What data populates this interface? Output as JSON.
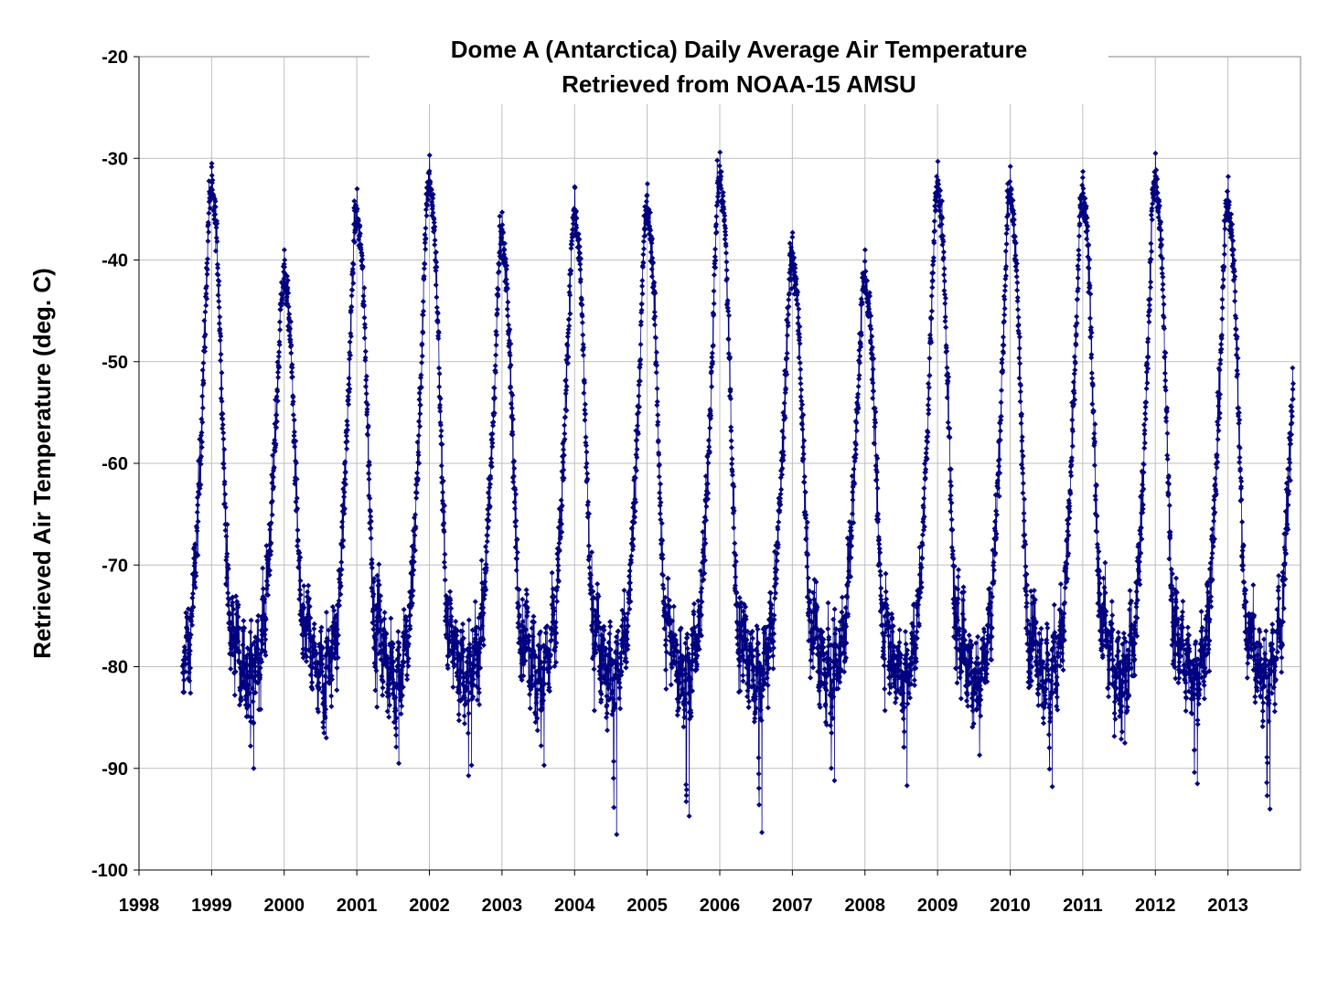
{
  "chart_data": {
    "type": "line",
    "title": "Dome A (Antarctica) Daily Average Air Temperature",
    "subtitle": "Retrieved from NOAA-15 AMSU",
    "xlabel": "",
    "ylabel": "Retrieved Air Temperature (deg. C)",
    "xlim": [
      1998,
      2014
    ],
    "ylim": [
      -100,
      -20
    ],
    "x_ticks": [
      "1998",
      "1999",
      "2000",
      "2001",
      "2002",
      "2003",
      "2004",
      "2005",
      "2006",
      "2007",
      "2008",
      "2009",
      "2010",
      "2011",
      "2012",
      "2013"
    ],
    "y_ticks": [
      "-20",
      "-30",
      "-40",
      "-50",
      "-60",
      "-70",
      "-80",
      "-90",
      "-100"
    ],
    "grid": true,
    "legend": "none",
    "marker": "diamond",
    "series_color": "#000080",
    "series": [
      {
        "name": "",
        "start_year": 1998.6,
        "end_year": 2013.9,
        "summer_peaks": [
          {
            "year": 1999,
            "peak": -30.5
          },
          {
            "year": 2000,
            "peak": -39.0
          },
          {
            "year": 2001,
            "peak": -33.0
          },
          {
            "year": 2002,
            "peak": -29.7
          },
          {
            "year": 2003,
            "peak": -35.3
          },
          {
            "year": 2004,
            "peak": -32.8
          },
          {
            "year": 2005,
            "peak": -32.5
          },
          {
            "year": 2006,
            "peak": -29.4
          },
          {
            "year": 2007,
            "peak": -37.3
          },
          {
            "year": 2008,
            "peak": -39.0
          },
          {
            "year": 2009,
            "peak": -30.3
          },
          {
            "year": 2010,
            "peak": -30.8
          },
          {
            "year": 2011,
            "peak": -31.3
          },
          {
            "year": 2012,
            "peak": -29.5
          },
          {
            "year": 2013,
            "peak": -31.8
          }
        ],
        "winter_lows": [
          {
            "year": 1998,
            "low": -88.5
          },
          {
            "year": 1999,
            "low": -90.0
          },
          {
            "year": 2000,
            "low": -87.0
          },
          {
            "year": 2001,
            "low": -89.5
          },
          {
            "year": 2002,
            "low": -89.7
          },
          {
            "year": 2003,
            "low": -89.7
          },
          {
            "year": 2004,
            "low": -96.5
          },
          {
            "year": 2005,
            "low": -94.7
          },
          {
            "year": 2006,
            "low": -96.3
          },
          {
            "year": 2007,
            "low": -91.2
          },
          {
            "year": 2008,
            "low": -91.7
          },
          {
            "year": 2009,
            "low": -88.7
          },
          {
            "year": 2010,
            "low": -91.8
          },
          {
            "year": 2011,
            "low": -87.5
          },
          {
            "year": 2012,
            "low": -91.5
          },
          {
            "year": 2013,
            "low": -94.0
          }
        ]
      }
    ]
  }
}
